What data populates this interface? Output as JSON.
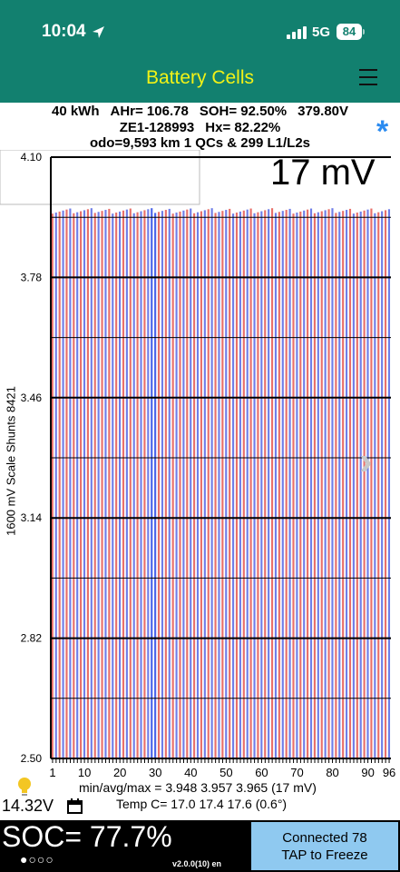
{
  "status": {
    "time": "10:04",
    "network": "5G",
    "battery": "84"
  },
  "header": {
    "title": "Battery Cells"
  },
  "info": {
    "kwh": "40 kWh",
    "ahr": "AHr= 106.78",
    "soh": "SOH= 92.50%",
    "pack_voltage": "379.80V",
    "model": "ZE1-128993",
    "hx": "Hx= 82.22%",
    "odo": "odo=9,593 km 1 QCs & 299 L1/L2s",
    "star": "*"
  },
  "chart": {
    "delta": "17 mV",
    "side_label": "1600 mV Scale   Shunts 8421"
  },
  "chart_data": {
    "type": "bar",
    "cells": 96,
    "ylim": [
      2.5,
      4.1
    ],
    "y_ticks": [
      "4.10",
      "3.78",
      "3.46",
      "3.14",
      "2.82",
      "2.50"
    ],
    "x_ticks": [
      "1",
      "10",
      "20",
      "30",
      "40",
      "50",
      "60",
      "70",
      "80",
      "90",
      "96"
    ],
    "min": 3.948,
    "avg": 3.957,
    "max": 3.965,
    "colors": {
      "odd": "#e8706a",
      "even": "#6f7ee8",
      "highlight": "#4a63ea"
    }
  },
  "stats": {
    "line1": "min/avg/max = 3.948 3.957 3.965  (17 mV)",
    "line2": "Temp C= 17.0  17.4  17.6  (0.6°)"
  },
  "footer": {
    "aux_voltage": "14.32V",
    "soc": "SOC= 77.7%",
    "dots": "●○○○",
    "version": "v2.0.0(10) en",
    "connected": "Connected 78",
    "tap": "TAP to Freeze"
  }
}
